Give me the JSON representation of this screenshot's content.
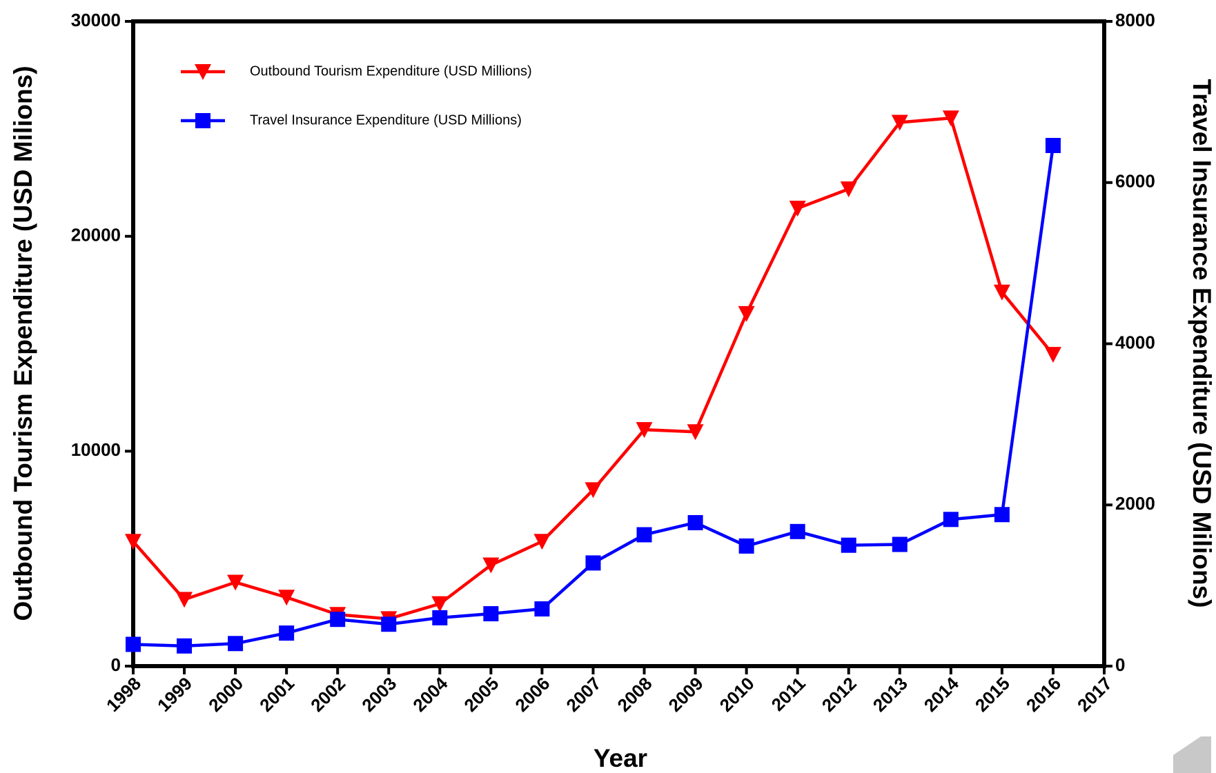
{
  "chart_data": {
    "type": "line",
    "x_label": "Year",
    "y_label": "Outbound Tourism Expenditure (USD Milions)",
    "y2_label": "Travel Insurance Expenditure (USD Milions)",
    "x": [
      1998,
      1999,
      2000,
      2001,
      2002,
      2003,
      2004,
      2005,
      2006,
      2007,
      2008,
      2009,
      2010,
      2011,
      2012,
      2013,
      2014,
      2015,
      2016
    ],
    "xlim": [
      1998,
      2017
    ],
    "xticks": [
      1998,
      1999,
      2000,
      2001,
      2002,
      2003,
      2004,
      2005,
      2006,
      2007,
      2008,
      2009,
      2010,
      2011,
      2012,
      2013,
      2014,
      2015,
      2016,
      2017
    ],
    "ylim": [
      0,
      30000
    ],
    "yticks": [
      0,
      10000,
      20000,
      30000
    ],
    "y2lim": [
      0,
      8000
    ],
    "y2ticks": [
      0,
      2000,
      4000,
      6000,
      8000
    ],
    "legend": "upper left",
    "series": [
      {
        "name": "Outbound Tourism Expenditure (USD Millions)",
        "color": "#ff0000",
        "marker": "triangle-down",
        "values": [
          5800,
          3100,
          3900,
          3200,
          2400,
          2200,
          2900,
          4700,
          5800,
          8200,
          11000,
          10900,
          16400,
          21300,
          22200,
          25300,
          25500,
          17400,
          14500
        ]
      },
      {
        "name": "Travel Insurance Expenditure (USD Millions)",
        "color": "#0000ff",
        "marker": "square",
        "axis": "y2",
        "values": [
          270,
          250,
          280,
          410,
          580,
          520,
          600,
          650,
          710,
          1280,
          1630,
          1780,
          1490,
          1670,
          1500,
          1510,
          1820,
          1880,
          6460
        ]
      }
    ]
  }
}
